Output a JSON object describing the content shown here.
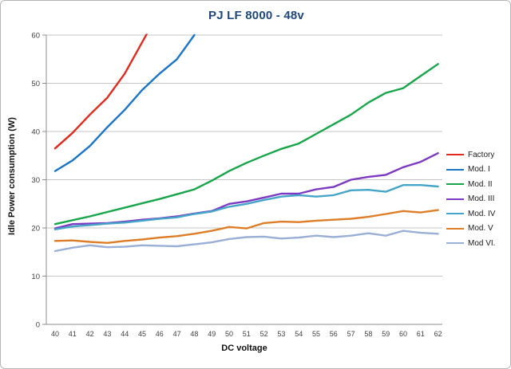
{
  "chart_data": {
    "type": "line",
    "title": "PJ LF 8000 - 48v",
    "xlabel": "DC voltage",
    "ylabel": "Idle Power consumption (W)",
    "x_ticks": [
      40,
      41,
      42,
      43,
      44,
      45,
      46,
      47,
      48,
      49,
      50,
      51,
      52,
      53,
      54,
      55,
      56,
      57,
      58,
      59,
      60,
      61,
      62
    ],
    "y_ticks": [
      0,
      10,
      20,
      30,
      40,
      50,
      60
    ],
    "ylim": [
      0,
      60
    ],
    "grid": "horizontal",
    "legend_position": "right",
    "series": [
      {
        "name": "Factory",
        "color": "#df2b1e",
        "x": [
          40,
          41,
          42,
          43,
          44,
          45,
          46
        ],
        "values": [
          36.5,
          39.7,
          43.5,
          47,
          52,
          58.5,
          65
        ]
      },
      {
        "name": "Mod. I",
        "color": "#1b74c5",
        "x": [
          40,
          41,
          42,
          43,
          44,
          45,
          46,
          47,
          48
        ],
        "values": [
          31.8,
          34,
          37,
          40.9,
          44.5,
          48.6,
          52,
          55,
          60
        ]
      },
      {
        "name": "Mod. II",
        "color": "#17a549",
        "x": [
          40,
          41,
          42,
          43,
          44,
          45,
          46,
          47,
          48,
          49,
          50,
          51,
          52,
          53,
          54,
          55,
          56,
          57,
          58,
          59,
          60,
          61,
          62
        ],
        "values": [
          20.8,
          21.6,
          22.4,
          23.3,
          24.2,
          25.1,
          26,
          27,
          28,
          29.8,
          31.8,
          33.5,
          35,
          36.4,
          37.5,
          39.5,
          41.5,
          43.5,
          46,
          48,
          49,
          51.5,
          54
        ]
      },
      {
        "name": "Mod. III",
        "color": "#7c3ac3",
        "x": [
          40,
          41,
          42,
          43,
          44,
          45,
          46,
          47,
          48,
          49,
          50,
          51,
          52,
          53,
          54,
          55,
          56,
          57,
          58,
          59,
          60,
          61,
          62
        ],
        "values": [
          19.9,
          20.8,
          20.9,
          21,
          21.3,
          21.7,
          22,
          22.4,
          23,
          23.5,
          25,
          25.5,
          26.3,
          27.1,
          27.1,
          28,
          28.5,
          30,
          30.6,
          31,
          32.6,
          33.7,
          35.5
        ]
      },
      {
        "name": "Mod. IV",
        "color": "#45a5c9",
        "x": [
          40,
          41,
          42,
          43,
          44,
          45,
          46,
          47,
          48,
          49,
          50,
          51,
          52,
          53,
          54,
          55,
          56,
          57,
          58,
          59,
          60,
          61,
          62
        ],
        "values": [
          19.7,
          20.3,
          20.6,
          20.9,
          21.1,
          21.5,
          21.9,
          22.2,
          22.9,
          23.4,
          24.4,
          25,
          25.8,
          26.5,
          26.8,
          26.5,
          26.8,
          27.8,
          27.9,
          27.5,
          28.9,
          28.9,
          28.6
        ]
      },
      {
        "name": "Mod. V",
        "color": "#de7d28",
        "x": [
          40,
          41,
          42,
          43,
          44,
          45,
          46,
          47,
          48,
          49,
          50,
          51,
          52,
          53,
          54,
          55,
          56,
          57,
          58,
          59,
          60,
          61,
          62
        ],
        "values": [
          17.3,
          17.4,
          17.1,
          16.9,
          17.3,
          17.6,
          18,
          18.3,
          18.8,
          19.4,
          20.2,
          19.9,
          21,
          21.3,
          21.2,
          21.5,
          21.7,
          21.9,
          22.3,
          22.9,
          23.5,
          23.2,
          23.7
        ]
      },
      {
        "name": "Mod VI.",
        "color": "#9aafd5",
        "x": [
          40,
          41,
          42,
          43,
          44,
          45,
          46,
          47,
          48,
          49,
          50,
          51,
          52,
          53,
          54,
          55,
          56,
          57,
          58,
          59,
          60,
          61,
          62
        ],
        "values": [
          15.2,
          15.9,
          16.4,
          16,
          16.1,
          16.4,
          16.3,
          16.2,
          16.6,
          17,
          17.7,
          18.1,
          18.2,
          17.8,
          18,
          18.4,
          18.1,
          18.4,
          18.9,
          18.4,
          19.4,
          19,
          18.8
        ]
      }
    ],
    "style": {
      "grid_color": "#c6c6c6",
      "axis_color": "#8c8c8c",
      "tick_label_color": "#3f3f3f",
      "title_color": "#1f497d",
      "frame_border_color": "#b5b5b5"
    }
  }
}
